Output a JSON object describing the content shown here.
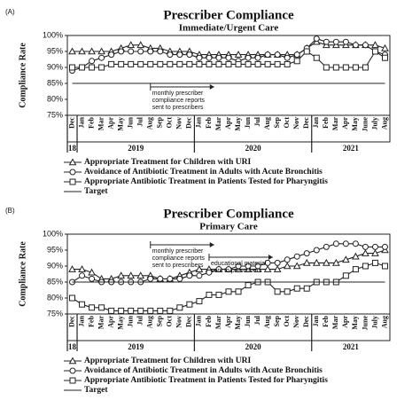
{
  "chart_data": [
    {
      "type": "line",
      "panel_label": "(A)",
      "title": "Prescriber Compliance",
      "subtitle": "Immediate/Urgent Care",
      "y_label": "Compliance Rate",
      "categories": [
        "Dec",
        "Jan",
        "Feb",
        "Mar",
        "Apr",
        "May",
        "Jun",
        "Jul",
        "Aug",
        "Sep",
        "Oct",
        "Nov",
        "Dec",
        "Jan",
        "Feb",
        "Mar",
        "Apr",
        "May",
        "Jun",
        "Jul",
        "Aug",
        "Sep",
        "Oct",
        "Nov",
        "Dec",
        "Jan",
        "Feb",
        "Mar",
        "Apr",
        "May",
        "June",
        "July",
        "Aug"
      ],
      "years": [
        "18",
        "2019",
        "2020",
        "2021"
      ],
      "ylim": [
        75,
        100
      ],
      "yticks": [
        {
          "value": 75,
          "label": "75%"
        },
        {
          "value": 80,
          "label": "80%"
        },
        {
          "value": 85,
          "label": "85%"
        },
        {
          "value": 90,
          "label": "90%"
        },
        {
          "value": 95,
          "label": "95%"
        },
        {
          "value": 100,
          "label": "100%"
        }
      ],
      "series": [
        {
          "name": "Appropriate Treatment for Children with URI",
          "color": "#222",
          "marker": "triangle",
          "values": [
            95,
            95,
            95,
            95,
            95,
            96,
            97,
            97,
            96,
            96,
            95,
            95,
            95,
            94,
            94,
            94,
            94,
            94,
            94,
            94,
            94,
            94,
            94,
            94,
            96,
            98,
            97,
            97,
            97,
            97,
            97,
            97,
            96
          ]
        },
        {
          "name": "Avoidance of Antibiotic Treatment in Adults with Acute Bronchitis",
          "color": "#222",
          "marker": "circle",
          "values": [
            89,
            90,
            92,
            93,
            94,
            95,
            95,
            95,
            95,
            95,
            94,
            94,
            94,
            93,
            93,
            93,
            93,
            92,
            93,
            93,
            94,
            94,
            93,
            94,
            96,
            99,
            98,
            98,
            98,
            97,
            97,
            95,
            94
          ]
        },
        {
          "name": "Appropriate Antibiotic Treatment in Patients Tested for Pharyngitis",
          "color": "#222",
          "marker": "square",
          "values": [
            90,
            90,
            90,
            90,
            91,
            91,
            91,
            91,
            91,
            91,
            91,
            91,
            91,
            91,
            91,
            91,
            91,
            91,
            91,
            91,
            91,
            91,
            91,
            92,
            95,
            93,
            90,
            90,
            90,
            90,
            90,
            95,
            93
          ]
        },
        {
          "name": "Target",
          "color": "#222",
          "marker": "none",
          "values": [
            85,
            85,
            85,
            85,
            85,
            85,
            85,
            85,
            85,
            85,
            85,
            85,
            85,
            85,
            85,
            85,
            85,
            85,
            85,
            85,
            85,
            85,
            85,
            85,
            85,
            85,
            85,
            85,
            85,
            85,
            85,
            85,
            85
          ]
        }
      ],
      "annotations": [
        {
          "text": [
            "monthly prescriber",
            "compliance reports",
            "sent to prescribers"
          ]
        }
      ]
    },
    {
      "type": "line",
      "panel_label": "(B)",
      "title": "Prescriber Compliance",
      "subtitle": "Primary Care",
      "y_label": "Compliance Rate",
      "categories": [
        "Dec",
        "Jan",
        "Feb",
        "Mar",
        "Apr",
        "May",
        "Jun",
        "Jul",
        "Aug",
        "Sep",
        "Oct",
        "Nov",
        "Dec",
        "Jan",
        "Feb",
        "Mar",
        "Apr",
        "May",
        "Jun",
        "Jul",
        "Aug",
        "Sep",
        "Oct",
        "Nov",
        "Dec",
        "Jan",
        "Feb",
        "Mar",
        "Apr",
        "May",
        "June",
        "July",
        "Aug"
      ],
      "years": [
        "18",
        "2019",
        "2020",
        "2021"
      ],
      "ylim": [
        75,
        100
      ],
      "yticks": [
        {
          "value": 75,
          "label": "75%"
        },
        {
          "value": 80,
          "label": "80%"
        },
        {
          "value": 85,
          "label": "85%"
        },
        {
          "value": 90,
          "label": "90%"
        },
        {
          "value": 95,
          "label": "95%"
        },
        {
          "value": 100,
          "label": "100%"
        }
      ],
      "series": [
        {
          "name": "Appropriate Treatment for Children with URI",
          "color": "#222",
          "marker": "triangle",
          "values": [
            89,
            89,
            88,
            86,
            86,
            87,
            87,
            87,
            87,
            86,
            86,
            87,
            88,
            89,
            89,
            89,
            89,
            89,
            89,
            89,
            89,
            89,
            90,
            90,
            91,
            91,
            91,
            91,
            92,
            93,
            94,
            94,
            95
          ]
        },
        {
          "name": "Avoidance of Antibiotic Treatment in Adults with Acute Bronchitis",
          "color": "#222",
          "marker": "circle",
          "values": [
            85,
            87,
            86,
            85,
            85,
            85,
            85,
            85,
            86,
            86,
            86,
            86,
            87,
            87,
            88,
            89,
            89,
            90,
            90,
            90,
            91,
            91,
            92,
            93,
            94,
            95,
            96,
            97,
            97,
            97,
            96,
            96,
            96
          ]
        },
        {
          "name": "Appropriate Antibiotic Treatment in Patients Tested for Pharyngitis",
          "color": "#222",
          "marker": "square",
          "values": [
            80,
            78,
            77,
            77,
            76,
            76,
            76,
            76,
            76,
            76,
            76,
            77,
            78,
            79,
            81,
            81,
            82,
            82,
            84,
            85,
            85,
            82,
            82,
            83,
            83,
            85,
            85,
            85,
            87,
            89,
            90,
            91,
            90
          ]
        },
        {
          "name": "Target",
          "color": "#222",
          "marker": "none",
          "values": [
            85,
            85,
            85,
            85,
            85,
            85,
            85,
            85,
            85,
            85,
            85,
            85,
            85,
            85,
            85,
            85,
            85,
            85,
            85,
            85,
            85,
            85,
            85,
            85,
            85,
            85,
            85,
            85,
            85,
            85,
            85,
            85,
            85
          ]
        }
      ],
      "annotations": [
        {
          "text": [
            "monthly prescriber",
            "compliance reports",
            "sent to prescribers"
          ]
        },
        {
          "text": [
            "educational material",
            "sent to prescribers"
          ]
        }
      ]
    }
  ]
}
